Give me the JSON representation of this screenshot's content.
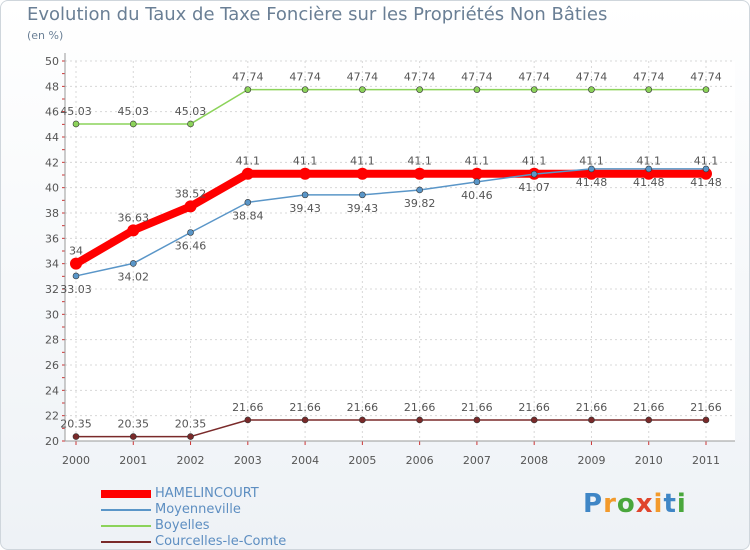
{
  "title": "Evolution du Taux de Taxe Foncière sur les Propriétés Non Bâties",
  "unit": "(en %)",
  "logo_text": "Proxiti",
  "chart_data": {
    "type": "line",
    "title": "Evolution du Taux de Taxe Foncière sur les Propriétés Non Bâties",
    "ylabel": "(en %)",
    "xlabel": "",
    "ylim": [
      20,
      50
    ],
    "y_ticks": [
      20,
      22,
      24,
      26,
      28,
      30,
      32,
      34,
      36,
      38,
      40,
      42,
      44,
      46,
      48,
      50
    ],
    "categories": [
      "2000",
      "2001",
      "2002",
      "2003",
      "2004",
      "2005",
      "2006",
      "2007",
      "2008",
      "2009",
      "2010",
      "2011"
    ],
    "grid": true,
    "legend_position": "bottom-left",
    "series": [
      {
        "name": "Boyelles",
        "color": "#8cd35a",
        "values": [
          45.03,
          45.03,
          45.03,
          47.74,
          47.74,
          47.74,
          47.74,
          47.74,
          47.74,
          47.74,
          47.74,
          47.74
        ],
        "labels": [
          "45.03",
          "45.03",
          "45.03",
          "47.74",
          "47.74",
          "47.74",
          "47.74",
          "47.74",
          "47.74",
          "47.74",
          "47.74",
          "47.74"
        ]
      },
      {
        "name": "Moyenneville",
        "color": "#5a96c8",
        "values": [
          33.03,
          34.02,
          36.46,
          38.84,
          39.43,
          39.43,
          39.82,
          40.46,
          41.07,
          41.48,
          41.48,
          41.48
        ],
        "labels": [
          "33.03",
          "34.02",
          "36.46",
          "38.84",
          "39.43",
          "39.43",
          "39.82",
          "40.46",
          "41.07",
          "41.48",
          "41.48",
          "41.48"
        ]
      },
      {
        "name": "HAMELINCOURT",
        "color": "#ff0000",
        "values": [
          34,
          36.63,
          38.52,
          41.1,
          41.1,
          41.1,
          41.1,
          41.1,
          41.1,
          41.1,
          41.1,
          41.1
        ],
        "labels": [
          "34",
          "36.63",
          "38.52",
          "41.1",
          "41.1",
          "41.1",
          "41.1",
          "41.1",
          "41.1",
          "41.1",
          "41.1",
          "41.1"
        ]
      },
      {
        "name": "Courcelles-le-Comte",
        "color": "#7a2a2a",
        "values": [
          20.35,
          20.35,
          20.35,
          21.66,
          21.66,
          21.66,
          21.66,
          21.66,
          21.66,
          21.66,
          21.66,
          21.66
        ],
        "labels": [
          "20.35",
          "20.35",
          "20.35",
          "21.66",
          "21.66",
          "21.66",
          "21.66",
          "21.66",
          "21.66",
          "21.66",
          "21.66",
          "21.66"
        ]
      }
    ],
    "legend": [
      "HAMELINCOURT",
      "Moyenneville",
      "Boyelles",
      "Courcelles-le-Comte"
    ]
  }
}
